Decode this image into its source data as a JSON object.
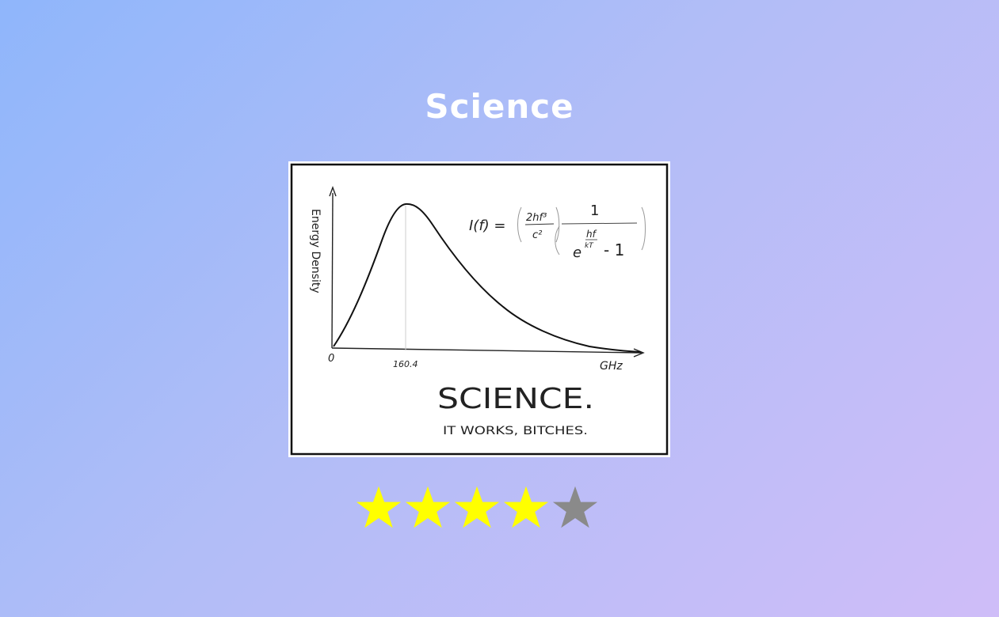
{
  "page": {
    "title": "Science"
  },
  "comic": {
    "ylabel": "Energy Density",
    "x_origin": "0",
    "x_peak": "160.4",
    "x_unit": "GHz",
    "caption": "SCIENCE.",
    "subcaption": "IT WORKS, BITCHES.",
    "formula": {
      "lhs": "I(f) =",
      "frac1_num": "2hf³",
      "frac1_den": "c²",
      "frac2_num": "1",
      "exp_num": "hf",
      "exp_den": "kT",
      "den_base": "e",
      "den_minus": "- 1"
    }
  },
  "rating": {
    "value": 4,
    "max": 5,
    "filled_color": "#ffff00",
    "empty_color": "#8a8a8a"
  }
}
